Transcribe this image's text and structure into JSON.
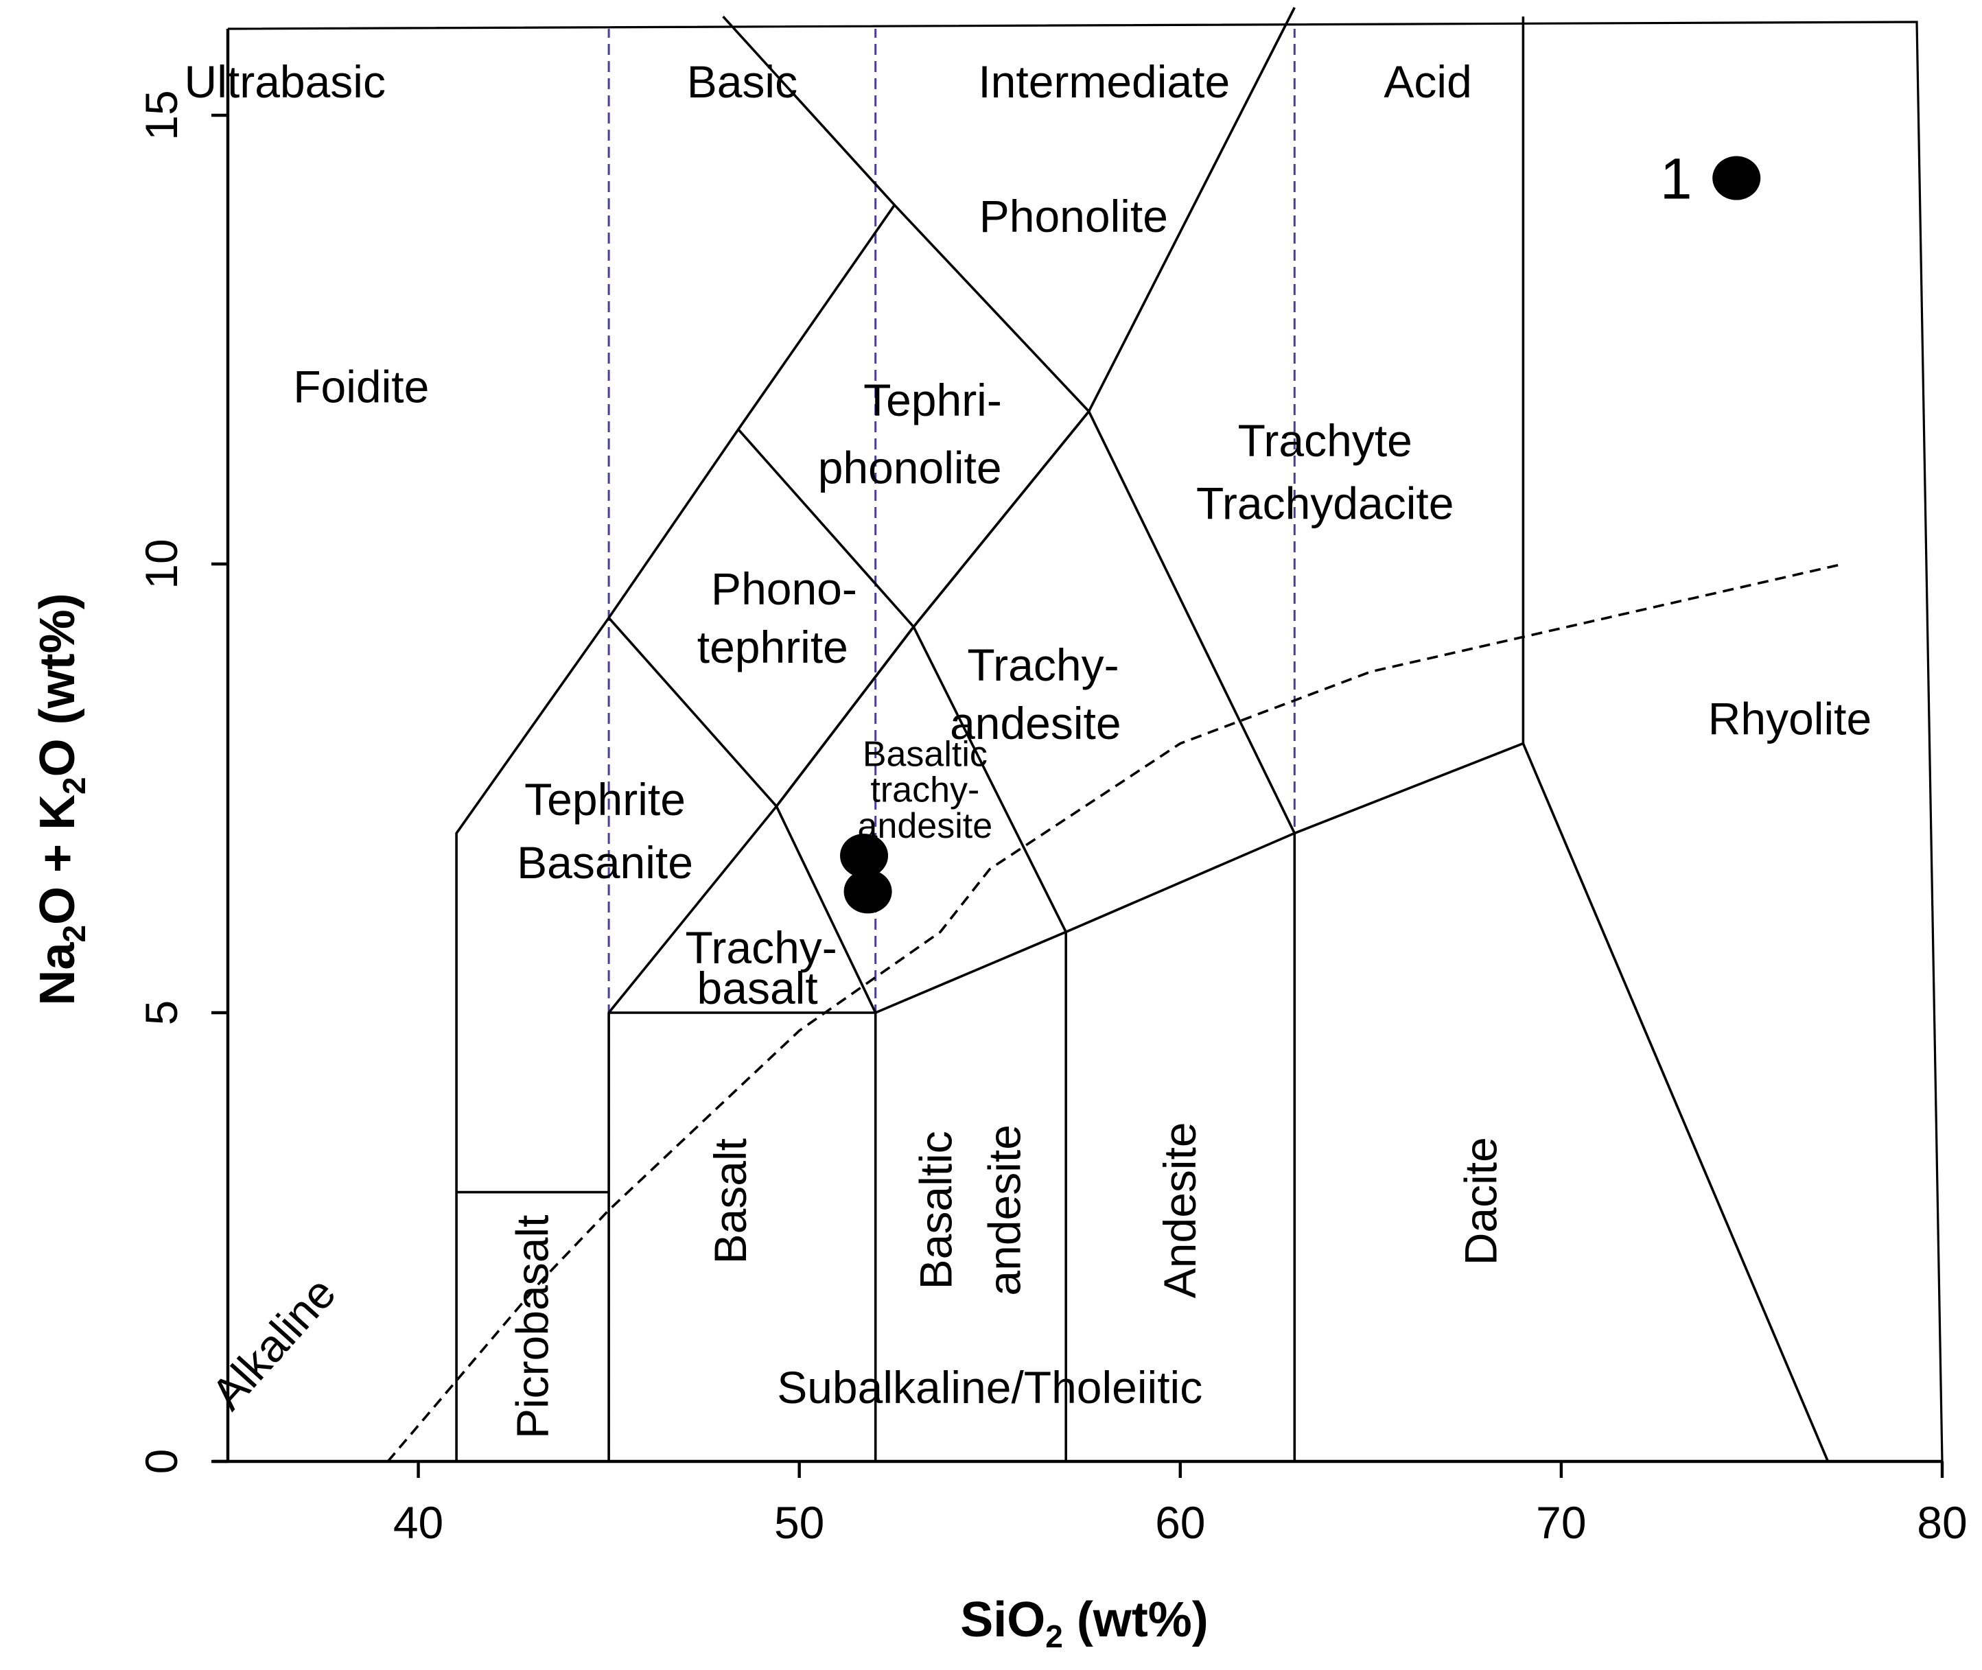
{
  "chart_data": {
    "type": "scatter",
    "title": "",
    "xlabel": "SiO",
    "xlabel_subscript": "2",
    "xlabel_suffix": " (wt%)",
    "ylabel_parts": [
      "Na",
      "2",
      "O + K",
      "2",
      "O (wt%)"
    ],
    "xlim": [
      35,
      80
    ],
    "ylim": [
      0,
      16
    ],
    "x_ticks": [
      40,
      50,
      60,
      70,
      80
    ],
    "y_ticks": [
      0,
      5,
      10,
      15
    ],
    "grid": false,
    "legend": "none",
    "series": [
      {
        "name": "samples",
        "points": [
          {
            "x": 51.7,
            "y": 6.75,
            "label": ""
          },
          {
            "x": 51.8,
            "y": 6.35,
            "label": ""
          },
          {
            "x": 74.6,
            "y": 14.3,
            "label": "1"
          }
        ]
      }
    ],
    "region_labels": [
      {
        "id": "ultrabasic",
        "text": "Ultrabasic",
        "x": 36.5,
        "y": 15.2
      },
      {
        "id": "basic",
        "text": "Basic",
        "x": 48.5,
        "y": 15.2
      },
      {
        "id": "intermediate",
        "text": "Intermediate",
        "x": 58.0,
        "y": 15.2
      },
      {
        "id": "acid",
        "text": "Acid",
        "x": 66.5,
        "y": 15.2
      },
      {
        "id": "phonolite",
        "text": "Phonolite",
        "x": 57.2,
        "y": 13.7
      },
      {
        "id": "foidite",
        "text": "Foidite",
        "x": 38.5,
        "y": 11.8
      },
      {
        "id": "tephriphonolite-1",
        "text": "Tephri-",
        "x": 53.5,
        "y": 11.65
      },
      {
        "id": "tephriphonolite-2",
        "text": "phonolite",
        "x": 52.9,
        "y": 10.9
      },
      {
        "id": "trachyte-1",
        "text": "Trachyte",
        "x": 63.8,
        "y": 11.2
      },
      {
        "id": "trachyte-2",
        "text": "Trachydacite",
        "x": 63.8,
        "y": 10.5
      },
      {
        "id": "phonotephrite-1",
        "text": "Phono-",
        "x": 49.6,
        "y": 9.55
      },
      {
        "id": "phonotephrite-2",
        "text": "tephrite",
        "x": 49.3,
        "y": 8.9
      },
      {
        "id": "trachyandesite-1",
        "text": "Trachy-",
        "x": 56.4,
        "y": 8.7
      },
      {
        "id": "trachyandesite-2",
        "text": "andesite",
        "x": 56.2,
        "y": 8.05
      },
      {
        "id": "rhyolite",
        "text": "Rhyolite",
        "x": 76.0,
        "y": 8.1
      },
      {
        "id": "bta-1",
        "text": "Basaltic",
        "x": 53.3,
        "y": 7.75
      },
      {
        "id": "bta-2",
        "text": "trachy-",
        "x": 53.3,
        "y": 7.35
      },
      {
        "id": "bta-3",
        "text": "andesite",
        "x": 53.3,
        "y": 6.95
      },
      {
        "id": "tephrite-1",
        "text": "Tephrite",
        "x": 44.9,
        "y": 7.2
      },
      {
        "id": "tephrite-2",
        "text": "Basanite",
        "x": 44.9,
        "y": 6.5
      },
      {
        "id": "trachybasalt-1",
        "text": "Trachy-",
        "x": 49.0,
        "y": 5.55
      },
      {
        "id": "trachybasalt-2",
        "text": "basalt",
        "x": 48.9,
        "y": 5.1
      },
      {
        "id": "subalkaline",
        "text": "Subalkaline/Tholeiitic",
        "x": 55.0,
        "y": 0.65
      }
    ],
    "vertical_labels": [
      {
        "id": "picrobasalt",
        "text": "Picrobasalt",
        "x": 43.4,
        "y": 1.5
      },
      {
        "id": "basalt",
        "text": "Basalt",
        "x": 48.6,
        "y": 2.9
      },
      {
        "id": "basaltic-andesite-1",
        "text": "Basaltic",
        "x": 54.0,
        "y": 2.8
      },
      {
        "id": "basaltic-andesite-2",
        "text": "andesite",
        "x": 55.8,
        "y": 2.8
      },
      {
        "id": "andesite",
        "text": "Andesite",
        "x": 60.4,
        "y": 2.8
      },
      {
        "id": "dacite",
        "text": "Dacite",
        "x": 68.3,
        "y": 2.9
      }
    ],
    "diagonal_labels": [
      {
        "id": "alkaline",
        "text": "Alkaline",
        "x": 36.5,
        "y": 1.2,
        "angle": -48
      }
    ],
    "field_boundaries": [
      [
        [
          41,
          0
        ],
        [
          41,
          7
        ],
        [
          45,
          9.4
        ],
        [
          48.4,
          11.5
        ],
        [
          52.5,
          14
        ],
        [
          57.6,
          11.7
        ],
        [
          63,
          16.2
        ]
      ],
      [
        [
          41,
          3
        ],
        [
          45,
          3
        ]
      ],
      [
        [
          45,
          0
        ],
        [
          45,
          5
        ],
        [
          49.4,
          7.3
        ],
        [
          53,
          9.3
        ],
        [
          57.6,
          11.7
        ]
      ],
      [
        [
          45,
          5
        ],
        [
          52,
          5
        ],
        [
          57,
          5.9
        ],
        [
          63,
          7
        ],
        [
          69,
          8
        ]
      ],
      [
        [
          45,
          9.4
        ],
        [
          49.4,
          7.3
        ],
        [
          52,
          5
        ]
      ],
      [
        [
          52,
          0
        ],
        [
          52,
          5
        ]
      ],
      [
        [
          57,
          0
        ],
        [
          57,
          5.9
        ]
      ],
      [
        [
          63,
          0
        ],
        [
          63,
          7
        ]
      ],
      [
        [
          49.4,
          7.3
        ],
        [
          53,
          9.3
        ],
        [
          57,
          5.9
        ]
      ],
      [
        [
          48.4,
          11.5
        ],
        [
          53,
          9.3
        ],
        [
          57.6,
          11.7
        ],
        [
          63,
          7
        ]
      ],
      [
        [
          69,
          8
        ],
        [
          77,
          0
        ]
      ],
      [
        [
          69,
          8
        ],
        [
          69,
          16.1
        ]
      ],
      [
        [
          48,
          16.1
        ],
        [
          52.5,
          14
        ]
      ]
    ],
    "reference_lines": [
      45,
      52,
      63
    ],
    "alkaline_divide": [
      [
        39.2,
        0
      ],
      [
        40,
        0.4
      ],
      [
        43.2,
        2
      ],
      [
        45,
        2.8
      ],
      [
        48,
        4
      ],
      [
        50,
        4.8
      ],
      [
        53.7,
        5.9
      ],
      [
        55,
        6.6
      ],
      [
        60,
        8
      ],
      [
        65,
        8.8
      ],
      [
        77.4,
        10
      ]
    ]
  }
}
